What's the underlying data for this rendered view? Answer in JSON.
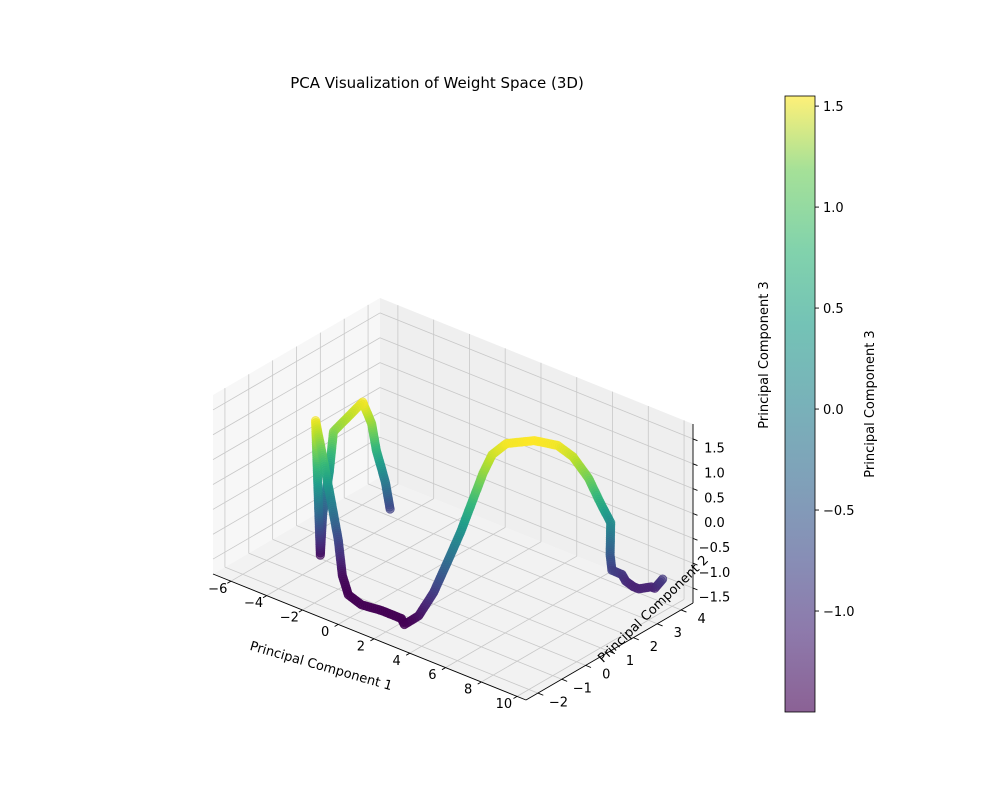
{
  "chart_data": {
    "type": "scatter",
    "projection": "3d",
    "title": "PCA Visualization of Weight Space (3D)",
    "xlabel": "Principal Component 1",
    "ylabel": "Principal Component 2",
    "zlabel": "Principal Component 3",
    "xlim": [
      -7,
      10.5
    ],
    "ylim": [
      -2.5,
      4.5
    ],
    "zlim": [
      -1.8,
      1.8
    ],
    "xticks": [
      -6,
      -4,
      -2,
      0,
      2,
      4,
      6,
      8,
      10
    ],
    "yticks": [
      -2,
      -1,
      0,
      1,
      2,
      3,
      4
    ],
    "zticks": [
      -1.5,
      -1.0,
      -0.5,
      0.0,
      0.5,
      1.0,
      1.5
    ],
    "grid": true,
    "colormap": "viridis",
    "colorbar": {
      "label": "Principal Component 3",
      "range": [
        -1.5,
        1.55
      ],
      "ticks": [
        -1.0,
        -0.5,
        0.0,
        0.5,
        1.0,
        1.5
      ]
    },
    "series": [
      {
        "points": [
          [
            -2.3,
            1.4,
            -0.9
          ],
          [
            -2.3,
            1.2,
            -0.3
          ],
          [
            -2.4,
            0.9,
            0.4
          ],
          [
            -2.4,
            0.7,
            1.0
          ],
          [
            -2.5,
            0.4,
            1.5
          ],
          [
            -3.2,
            -0.3,
            1.0
          ],
          [
            -3.3,
            -0.4,
            0.2
          ],
          [
            -3.4,
            -0.6,
            -0.6
          ],
          [
            -3.4,
            -0.7,
            -1.4
          ],
          [
            -3.0,
            -1.2,
            1.5
          ],
          [
            -2.9,
            -1.0,
            0.8
          ],
          [
            -2.6,
            -0.9,
            0.0
          ],
          [
            -2.0,
            -1.0,
            -0.8
          ],
          [
            -1.5,
            -1.2,
            -1.4
          ],
          [
            -0.5,
            -1.7,
            -1.5
          ],
          [
            0.5,
            -1.9,
            -1.5
          ],
          [
            1.5,
            -1.8,
            -1.5
          ],
          [
            2.2,
            -1.8,
            -1.5
          ],
          [
            2.6,
            -1.8,
            -1.5
          ],
          [
            2.9,
            -1.9,
            -1.55
          ],
          [
            3.3,
            -1.6,
            -1.4
          ],
          [
            3.6,
            -1.2,
            -1.0
          ],
          [
            3.8,
            -0.8,
            -0.5
          ],
          [
            3.9,
            -0.3,
            0.0
          ],
          [
            4.0,
            0.1,
            0.5
          ],
          [
            4.1,
            0.5,
            1.0
          ],
          [
            4.2,
            0.8,
            1.3
          ],
          [
            4.6,
            1.1,
            1.5
          ],
          [
            5.5,
            1.6,
            1.55
          ],
          [
            6.4,
            1.9,
            1.5
          ],
          [
            7.0,
            2.1,
            1.3
          ],
          [
            7.6,
            2.3,
            0.9
          ],
          [
            8.0,
            2.5,
            0.4
          ],
          [
            8.3,
            2.7,
            0.0
          ],
          [
            8.4,
            2.6,
            -0.6
          ],
          [
            8.5,
            2.6,
            -0.9
          ],
          [
            8.8,
            2.8,
            -1.0
          ],
          [
            9.0,
            2.8,
            -1.1
          ],
          [
            9.3,
            2.9,
            -1.2
          ],
          [
            9.6,
            2.9,
            -1.2
          ],
          [
            9.9,
            3.2,
            -1.2
          ],
          [
            10.1,
            3.2,
            -1.2
          ],
          [
            10.4,
            3.3,
            -1.0
          ]
        ]
      }
    ]
  }
}
